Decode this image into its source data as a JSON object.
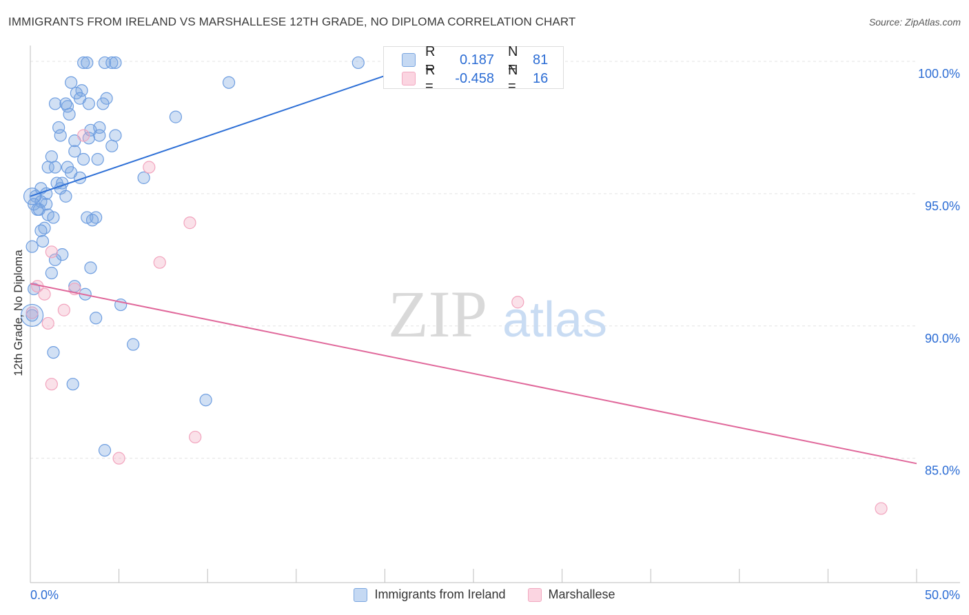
{
  "title": "IMMIGRANTS FROM IRELAND VS MARSHALLESE 12TH GRADE, NO DIPLOMA CORRELATION CHART",
  "source": "Source: ZipAtlas.com",
  "watermark": {
    "zip": "ZIP",
    "atlas": "atlas"
  },
  "stats": [
    {
      "r_label": "R =",
      "r_value": "0.187",
      "n_label": "N =",
      "n_value": "81",
      "color": "#7aa6e0"
    },
    {
      "r_label": "R =",
      "r_value": "-0.458",
      "n_label": "N =",
      "n_value": "16",
      "color": "#f2a8c0"
    }
  ],
  "legend": [
    {
      "label": "Immigrants from Ireland",
      "color": "#7aa6e0"
    },
    {
      "label": "Marshallese",
      "color": "#f2a8c0"
    }
  ],
  "chart_data": {
    "type": "scatter",
    "ylabel": "12th Grade, No Diploma",
    "xlabel": "",
    "xlim": [
      0,
      50
    ],
    "ylim": [
      80.3,
      100.6
    ],
    "x_tick_labels": [
      {
        "value": 0,
        "label": "0.0%"
      },
      {
        "value": 50,
        "label": "50.0%"
      }
    ],
    "y_tick_labels": [
      {
        "value": 100,
        "label": "100.0%"
      },
      {
        "value": 95,
        "label": "95.0%"
      },
      {
        "value": 90,
        "label": "90.0%"
      },
      {
        "value": 85,
        "label": "85.0%"
      }
    ],
    "grid": true,
    "series": [
      {
        "name": "Immigrants from Ireland",
        "color": "#6d9de0",
        "trend": {
          "x": [
            0,
            20.2
          ],
          "y": [
            94.9,
            99.5
          ],
          "color": "#2d6fd6"
        },
        "points": [
          [
            3.0,
            99.95
          ],
          [
            3.2,
            99.95
          ],
          [
            4.2,
            99.95
          ],
          [
            4.6,
            99.95
          ],
          [
            4.8,
            99.95
          ],
          [
            18.5,
            99.95
          ],
          [
            2.3,
            99.2
          ],
          [
            11.2,
            99.2
          ],
          [
            2.9,
            98.9
          ],
          [
            2.6,
            98.8
          ],
          [
            2.8,
            98.6
          ],
          [
            4.3,
            98.6
          ],
          [
            1.4,
            98.4
          ],
          [
            2.1,
            98.3
          ],
          [
            2.0,
            98.4
          ],
          [
            3.3,
            98.4
          ],
          [
            4.1,
            98.4
          ],
          [
            2.2,
            98.0
          ],
          [
            8.2,
            97.9
          ],
          [
            1.6,
            97.5
          ],
          [
            3.4,
            97.4
          ],
          [
            3.9,
            97.5
          ],
          [
            1.7,
            97.2
          ],
          [
            3.9,
            97.2
          ],
          [
            4.8,
            97.2
          ],
          [
            2.5,
            97.0
          ],
          [
            3.3,
            97.1
          ],
          [
            4.6,
            96.8
          ],
          [
            2.5,
            96.6
          ],
          [
            1.2,
            96.4
          ],
          [
            3.0,
            96.3
          ],
          [
            3.8,
            96.3
          ],
          [
            1.0,
            96.0
          ],
          [
            1.4,
            96.0
          ],
          [
            2.1,
            96.0
          ],
          [
            2.3,
            95.8
          ],
          [
            6.4,
            95.6
          ],
          [
            2.8,
            95.6
          ],
          [
            1.5,
            95.4
          ],
          [
            1.8,
            95.4
          ],
          [
            1.7,
            95.2
          ],
          [
            0.6,
            95.2
          ],
          [
            0.9,
            95.0
          ],
          [
            0.3,
            94.9
          ],
          [
            2.0,
            94.9
          ],
          [
            0.6,
            94.7
          ],
          [
            0.2,
            94.6
          ],
          [
            0.9,
            94.6
          ],
          [
            0.4,
            94.4
          ],
          [
            0.5,
            94.4
          ],
          [
            1.0,
            94.2
          ],
          [
            1.3,
            94.1
          ],
          [
            3.2,
            94.1
          ],
          [
            3.7,
            94.1
          ],
          [
            3.5,
            94.0
          ],
          [
            0.8,
            93.7
          ],
          [
            0.6,
            93.6
          ],
          [
            0.7,
            93.2
          ],
          [
            0.1,
            93.0
          ],
          [
            1.8,
            92.7
          ],
          [
            1.4,
            92.5
          ],
          [
            3.4,
            92.2
          ],
          [
            1.2,
            92.0
          ],
          [
            0.2,
            91.4
          ],
          [
            2.5,
            91.5
          ],
          [
            3.1,
            91.2
          ],
          [
            5.1,
            90.8
          ],
          [
            3.7,
            90.3
          ],
          [
            0.1,
            90.4
          ],
          [
            5.8,
            89.3
          ],
          [
            1.3,
            89.0
          ],
          [
            2.4,
            87.8
          ],
          [
            9.9,
            87.2
          ],
          [
            4.2,
            85.3
          ]
        ]
      },
      {
        "name": "Marshallese",
        "color": "#f2a3bd",
        "trend": {
          "x": [
            0,
            50
          ],
          "y": [
            91.6,
            84.8
          ],
          "color": "#e0679a"
        },
        "points": [
          [
            3.0,
            97.2
          ],
          [
            6.7,
            96.0
          ],
          [
            9.0,
            93.9
          ],
          [
            1.2,
            92.8
          ],
          [
            7.3,
            92.4
          ],
          [
            0.4,
            91.5
          ],
          [
            2.5,
            91.4
          ],
          [
            0.8,
            91.2
          ],
          [
            1.9,
            90.6
          ],
          [
            0.1,
            90.5
          ],
          [
            1.0,
            90.1
          ],
          [
            27.5,
            90.9
          ],
          [
            1.2,
            87.8
          ],
          [
            9.3,
            85.8
          ],
          [
            5.0,
            85.0
          ],
          [
            48.0,
            83.1
          ]
        ]
      }
    ]
  }
}
